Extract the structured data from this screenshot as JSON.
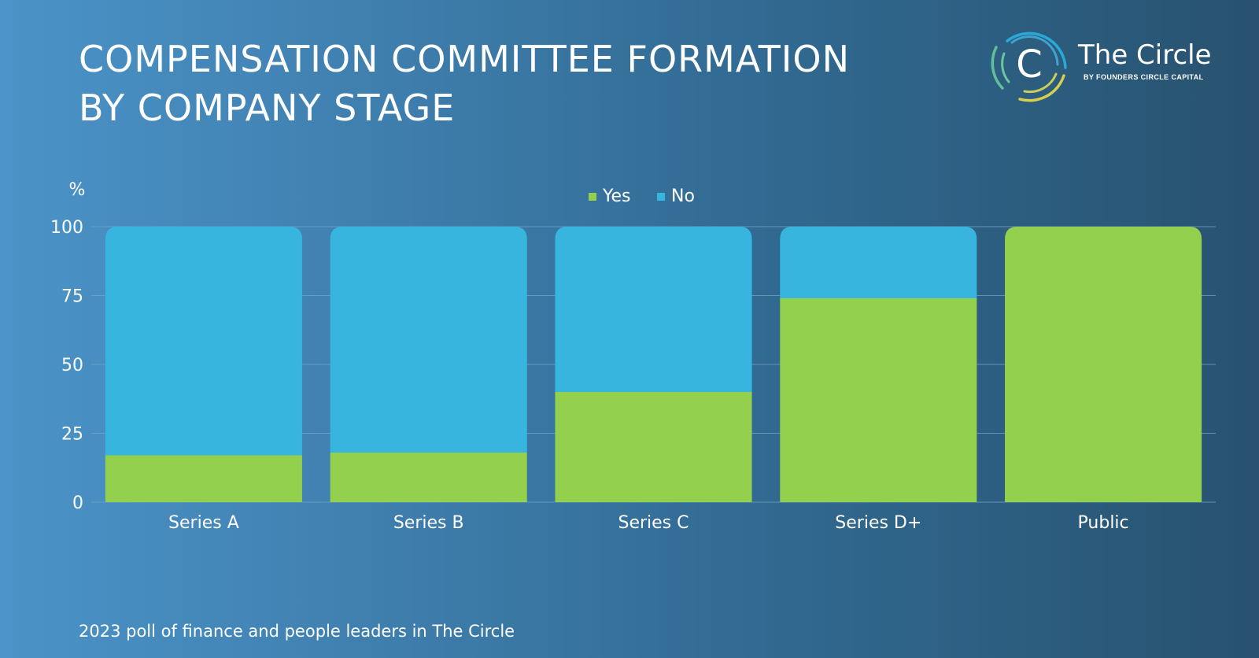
{
  "header": {
    "title_line1": "COMPENSATION COMMITTEE FORMATION",
    "title_line2": "BY COMPANY STAGE"
  },
  "logo": {
    "name": "The Circle",
    "tagline": "BY FOUNDERS CIRCLE CAPITAL",
    "mark_letter": "C",
    "icon": "circle-c-logo-icon"
  },
  "footer": {
    "note": "2023 poll of finance and people leaders in The Circle"
  },
  "colors": {
    "yes": "#92d04d",
    "no": "#38b5df",
    "gridline": "#7aa6c8",
    "logo_teal": "#2aa9d6",
    "logo_yellow": "#d8cf4e",
    "logo_green": "#5fbf9a"
  },
  "chart_data": {
    "type": "bar",
    "stacked": true,
    "title": "COMPENSATION COMMITTEE FORMATION BY COMPANY STAGE",
    "ylabel": "%",
    "xlabel": "",
    "ylim": [
      0,
      100
    ],
    "yticks": [
      0,
      25,
      50,
      75,
      100
    ],
    "grid": true,
    "legend_position": "top-center",
    "categories": [
      "Series A",
      "Series B",
      "Series C",
      "Series D+",
      "Public"
    ],
    "series": [
      {
        "name": "Yes",
        "color": "#92d04d",
        "values": [
          17,
          18,
          40,
          74,
          100
        ]
      },
      {
        "name": "No",
        "color": "#38b5df",
        "values": [
          83,
          82,
          60,
          26,
          0
        ]
      }
    ]
  }
}
